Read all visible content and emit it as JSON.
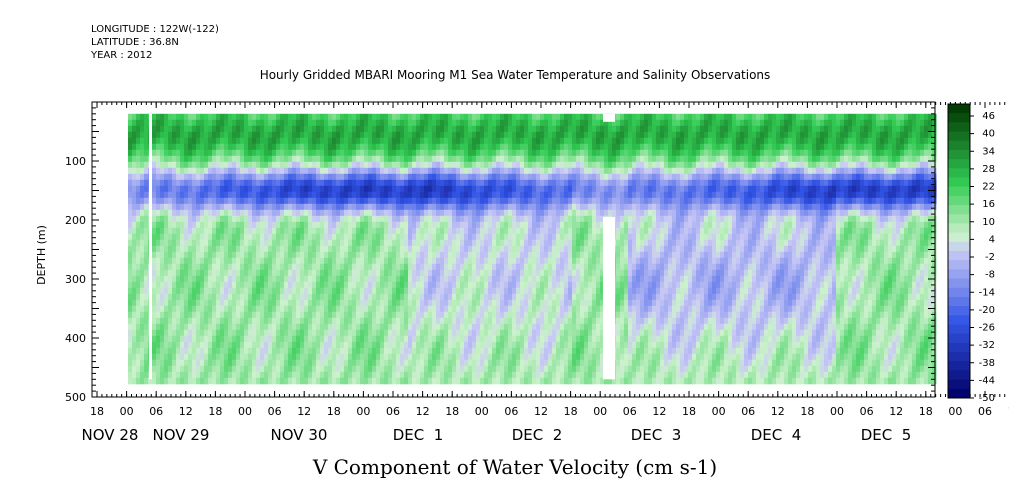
{
  "header": {
    "longitude": "LONGITUDE : 122W(-122)",
    "latitude": "LATITUDE : 36.8N",
    "year": "YEAR : 2012"
  },
  "chart_data": {
    "type": "heatmap",
    "title": "Hourly Gridded MBARI Mooring M1 Sea Water Temperature and Salinity Observations",
    "xlabel": "V Component of Water Velocity (cm s-1)",
    "ylabel": "DEPTH (m)",
    "y_range": [
      500,
      0
    ],
    "y_ticks": [
      100,
      200,
      300,
      400,
      500
    ],
    "hour_labels": [
      "18",
      "00",
      "06",
      "12",
      "18",
      "00",
      "06",
      "12",
      "18",
      "00",
      "06",
      "12",
      "18",
      "00",
      "06",
      "12",
      "18",
      "00",
      "06",
      "12",
      "18",
      "00",
      "06",
      "12",
      "18",
      "00",
      "06",
      "12",
      "18",
      "00",
      "06",
      "12",
      "18"
    ],
    "day_labels": [
      "NOV 28",
      "NOV 29",
      "NOV 30",
      "DEC  1",
      "DEC  2",
      "DEC  3",
      "DEC  4",
      "DEC  5"
    ],
    "colorbar": {
      "levels": [
        46,
        40,
        34,
        28,
        22,
        16,
        10,
        4,
        -2,
        -8,
        -14,
        -20,
        -26,
        -32,
        -38,
        -44,
        -50
      ],
      "colors": {
        "top": "#003300",
        "mid_positive": "#33cc55",
        "near_zero": "#ccf2cc",
        "near_zero_negative": "#c8c8f5",
        "mid_negative": "#3355e6",
        "bottom": "#000066"
      }
    },
    "description_values": {
      "surface_layer_depth_m": [
        20,
        110
      ],
      "data_bottom_depth_m": 470
    }
  }
}
